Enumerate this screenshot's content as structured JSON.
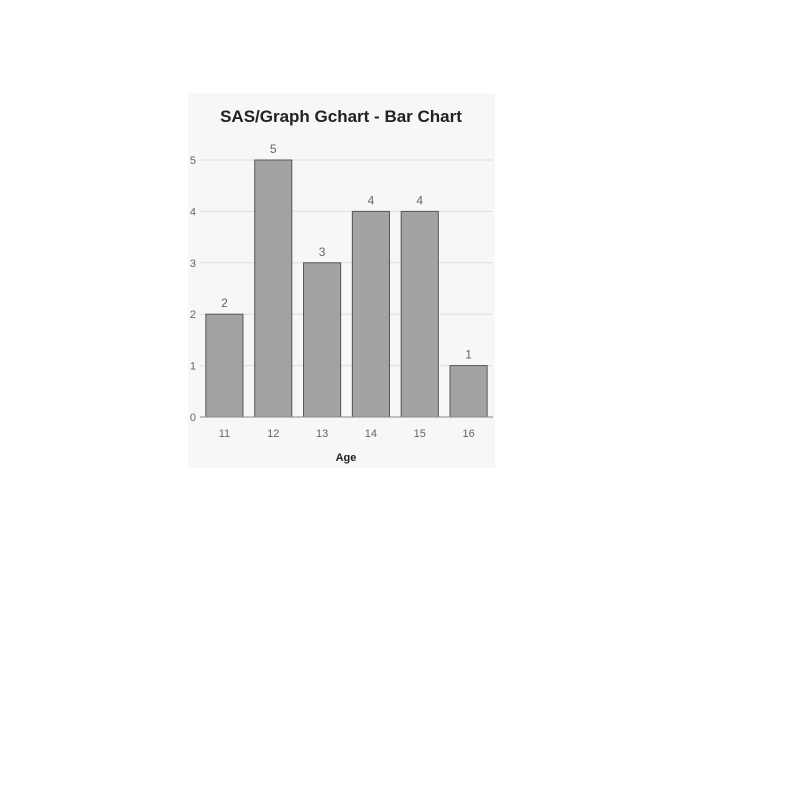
{
  "chart_data": {
    "type": "bar",
    "title": "SAS/Graph Gchart - Bar Chart",
    "xlabel": "Age",
    "ylabel": "",
    "categories": [
      "11",
      "12",
      "13",
      "14",
      "15",
      "16"
    ],
    "values": [
      2,
      5,
      3,
      4,
      4,
      1
    ],
    "ylim": [
      0,
      5
    ],
    "yticks": [
      0,
      1,
      2,
      3,
      4,
      5
    ],
    "grid": true,
    "legend": "none",
    "colors": {
      "bar": "#a3a3a3",
      "bar_border": "#555555",
      "background": "#f7f7f7",
      "grid": "#dddddd"
    }
  }
}
